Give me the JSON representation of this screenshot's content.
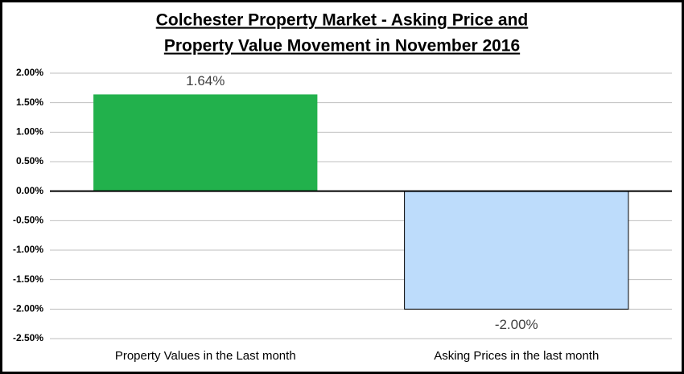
{
  "chart_data": {
    "type": "bar",
    "title": [
      "Colchester Property Market - Asking Price and",
      "Property Value Movement in November 2016"
    ],
    "categories": [
      "Property Values in the Last month",
      "Asking Prices in the last month"
    ],
    "values": [
      1.64,
      -2.0
    ],
    "value_labels": [
      "1.64%",
      "-2.00%"
    ],
    "colors": [
      "#22b14c",
      "#bddcfb"
    ],
    "ylim": [
      -2.5,
      2.0
    ],
    "yticks": [
      {
        "value": 2.0,
        "label": "2.00%"
      },
      {
        "value": 1.5,
        "label": "1.50%"
      },
      {
        "value": 1.0,
        "label": "1.00%"
      },
      {
        "value": 0.5,
        "label": "0.50%"
      },
      {
        "value": 0,
        "label": "0.00%"
      },
      {
        "value": -0.5,
        "label": "-0.50%"
      },
      {
        "value": -1.0,
        "label": "-1.00%"
      },
      {
        "value": -1.5,
        "label": "-1.50%"
      },
      {
        "value": -2.0,
        "label": "-2.00%"
      },
      {
        "value": -2.5,
        "label": "-2.50%"
      }
    ],
    "grid": true
  }
}
